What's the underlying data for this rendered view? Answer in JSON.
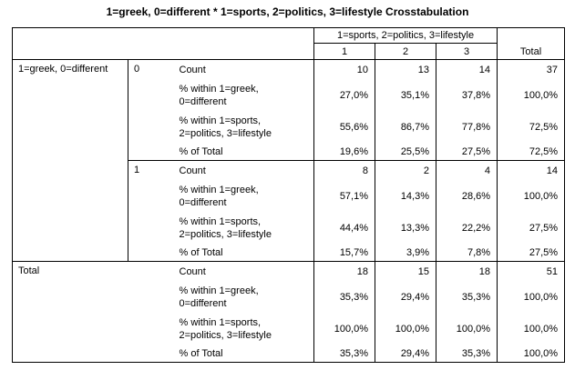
{
  "title": "1=greek, 0=different * 1=sports, 2=politics, 3=lifestyle Crosstabulation",
  "header": {
    "group_label": "1=sports, 2=politics, 3=lifestyle",
    "cols": [
      "1",
      "2",
      "3"
    ],
    "total": "Total"
  },
  "row_var": "1=greek, 0=different",
  "stats": [
    "Count",
    "% within 1=greek, 0=different",
    "% within 1=sports, 2=politics, 3=lifestyle",
    "% of Total"
  ],
  "groups": [
    {
      "label": "0",
      "rows": [
        [
          "10",
          "13",
          "14",
          "37"
        ],
        [
          "27,0%",
          "35,1%",
          "37,8%",
          "100,0%"
        ],
        [
          "55,6%",
          "86,7%",
          "77,8%",
          "72,5%"
        ],
        [
          "19,6%",
          "25,5%",
          "27,5%",
          "72,5%"
        ]
      ]
    },
    {
      "label": "1",
      "rows": [
        [
          "8",
          "2",
          "4",
          "14"
        ],
        [
          "57,1%",
          "14,3%",
          "28,6%",
          "100,0%"
        ],
        [
          "44,4%",
          "13,3%",
          "22,2%",
          "27,5%"
        ],
        [
          "15,7%",
          "3,9%",
          "7,8%",
          "27,5%"
        ]
      ]
    }
  ],
  "total": {
    "label": "Total",
    "rows": [
      [
        "18",
        "15",
        "18",
        "51"
      ],
      [
        "35,3%",
        "29,4%",
        "35,3%",
        "100,0%"
      ],
      [
        "100,0%",
        "100,0%",
        "100,0%",
        "100,0%"
      ],
      [
        "35,3%",
        "29,4%",
        "35,3%",
        "100,0%"
      ]
    ]
  }
}
